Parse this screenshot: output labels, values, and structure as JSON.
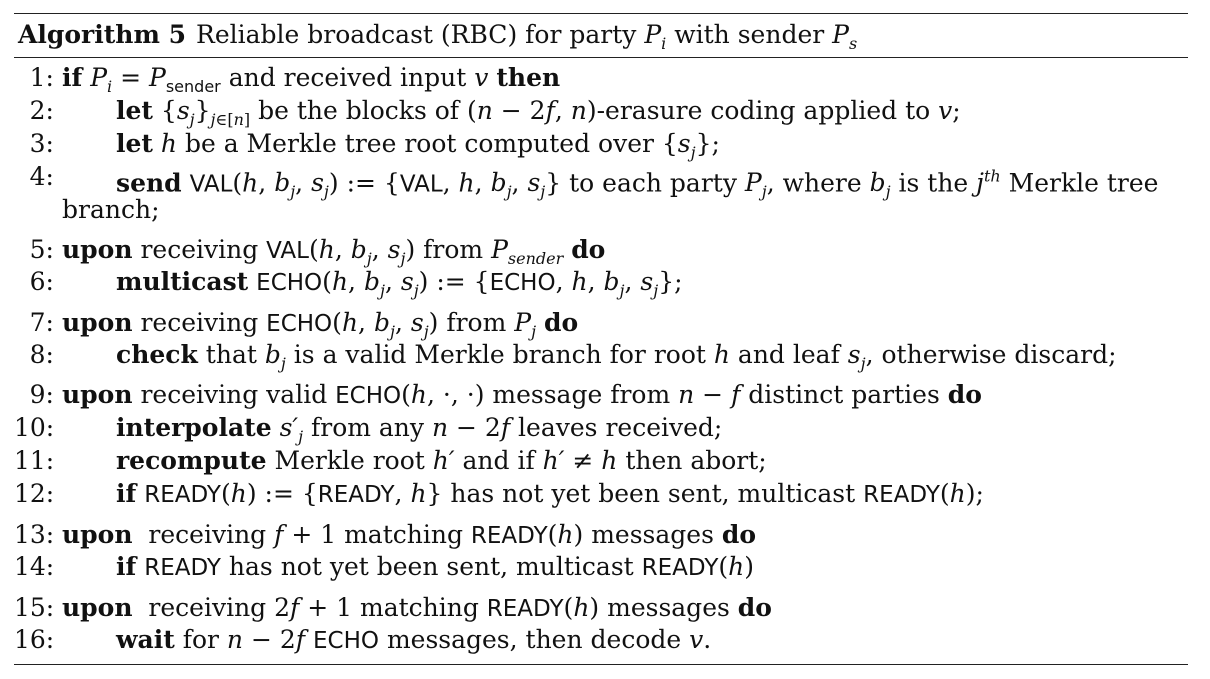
{
  "caption": {
    "label": "Algorithm 5",
    "title_html": "Reliable broadcast (RBC) for party <i>P<sub>i</sub></i> with sender <i>P<sub>s</sub></i>"
  },
  "lines": [
    {
      "num": "1:",
      "indent": 1,
      "html": "<b>if</b> <i>P<sub>i</sub></i> = <i>P</i><sub class=\"sf\" style=\"font-size:16px\">sender</sub> and received input <i>v</i> <b>then</b>"
    },
    {
      "num": "2:",
      "indent": 2,
      "html": "<b>let</b> {<i>s<sub>j</sub></i>}<sub><i>j</i>∈[<i>n</i>]</sub> be the blocks of (<i>n</i> − 2<i>f</i>, <i>n</i>)-erasure coding applied to <i>v</i>;"
    },
    {
      "num": "3:",
      "indent": 2,
      "html": "<b>let</b> <i>h</i> be a Merkle tree root computed over {<i>s<sub>j</sub></i>};"
    },
    {
      "num": "4:",
      "indent": 2,
      "html": "<b>send</b> <span class=\"sf\">VAL</span>(<i>h</i>, <i>b<sub>j</sub></i>, <i>s<sub>j</sub></i>) := {<span class=\"sf\">VAL</span>, <i>h</i>, <i>b<sub>j</sub></i>, <i>s<sub>j</sub></i>} to each party <i>P<sub>j</sub></i>, where <i>b<sub>j</sub></i> is the <i>j<sup>th</sup></i> Merkle tree"
    },
    {
      "num": "",
      "indent": 1,
      "html": "branch;"
    },
    {
      "num": "5:",
      "indent": 1,
      "html": "<b>upon</b> receiving <span class=\"sf\">VAL</span>(<i>h</i>, <i>b<sub>j</sub></i>, <i>s<sub>j</sub></i>) from <i>P<sub>sender</sub></i> <b>do</b>"
    },
    {
      "num": "6:",
      "indent": 2,
      "html": "<b>multicast</b> <span class=\"sf\">ECHO</span>(<i>h</i>, <i>b<sub>j</sub></i>, <i>s<sub>j</sub></i>) := {<span class=\"sf\">ECHO</span>, <i>h</i>, <i>b<sub>j</sub></i>, <i>s<sub>j</sub></i>};"
    },
    {
      "num": "7:",
      "indent": 1,
      "html": "<b>upon</b> receiving <span class=\"sf\">ECHO</span>(<i>h</i>, <i>b<sub>j</sub></i>, <i>s<sub>j</sub></i>) from <i>P<sub>j</sub></i> <b>do</b>"
    },
    {
      "num": "8:",
      "indent": 2,
      "html": "<b>check</b> that <i>b<sub>j</sub></i> is a valid Merkle branch for root <i>h</i> and leaf <i>s<sub>j</sub></i>, otherwise discard;"
    },
    {
      "num": "9:",
      "indent": 1,
      "html": "<b>upon</b> receiving valid <span class=\"sf\">ECHO</span>(<i>h</i>, ·, ·) message from <i>n</i> − <i>f</i> distinct parties <b>do</b>"
    },
    {
      "num": "10:",
      "indent": 2,
      "html": "<b>interpolate</b> <i>s′<sub>j</sub></i> from any <i>n</i> − 2<i>f</i> leaves received;"
    },
    {
      "num": "11:",
      "indent": 2,
      "html": "<b>recompute</b> Merkle root <i>h′</i> and if <i>h′</i> ≠ <i>h</i> then abort;"
    },
    {
      "num": "12:",
      "indent": 2,
      "html": "<b>if</b> <span class=\"sf\">READY</span>(<i>h</i>) := {<span class=\"sf\">READY</span>, <i>h</i>} has not yet been sent, multicast <span class=\"sf\">READY</span>(<i>h</i>);"
    },
    {
      "num": "13:",
      "indent": 1,
      "html": "<b>upon</b>&nbsp; receiving <i>f</i> + 1 matching <span class=\"sf\">READY</span>(<i>h</i>) messages <b>do</b>"
    },
    {
      "num": "14:",
      "indent": 2,
      "html": "<b>if</b> <span class=\"sf\">READY</span> has not yet been sent, multicast <span class=\"sf\">READY</span>(<i>h</i>)"
    },
    {
      "num": "15:",
      "indent": 1,
      "html": "<b>upon</b>&nbsp; receiving 2<i>f</i> + 1 matching <span class=\"sf\">READY</span>(<i>h</i>) messages <b>do</b>"
    },
    {
      "num": "16:",
      "indent": 2,
      "html": "<b>wait</b> for <i>n</i> − 2<i>f</i> <span class=\"sf\">ECHO</span> messages, then decode <i>v</i>."
    }
  ]
}
